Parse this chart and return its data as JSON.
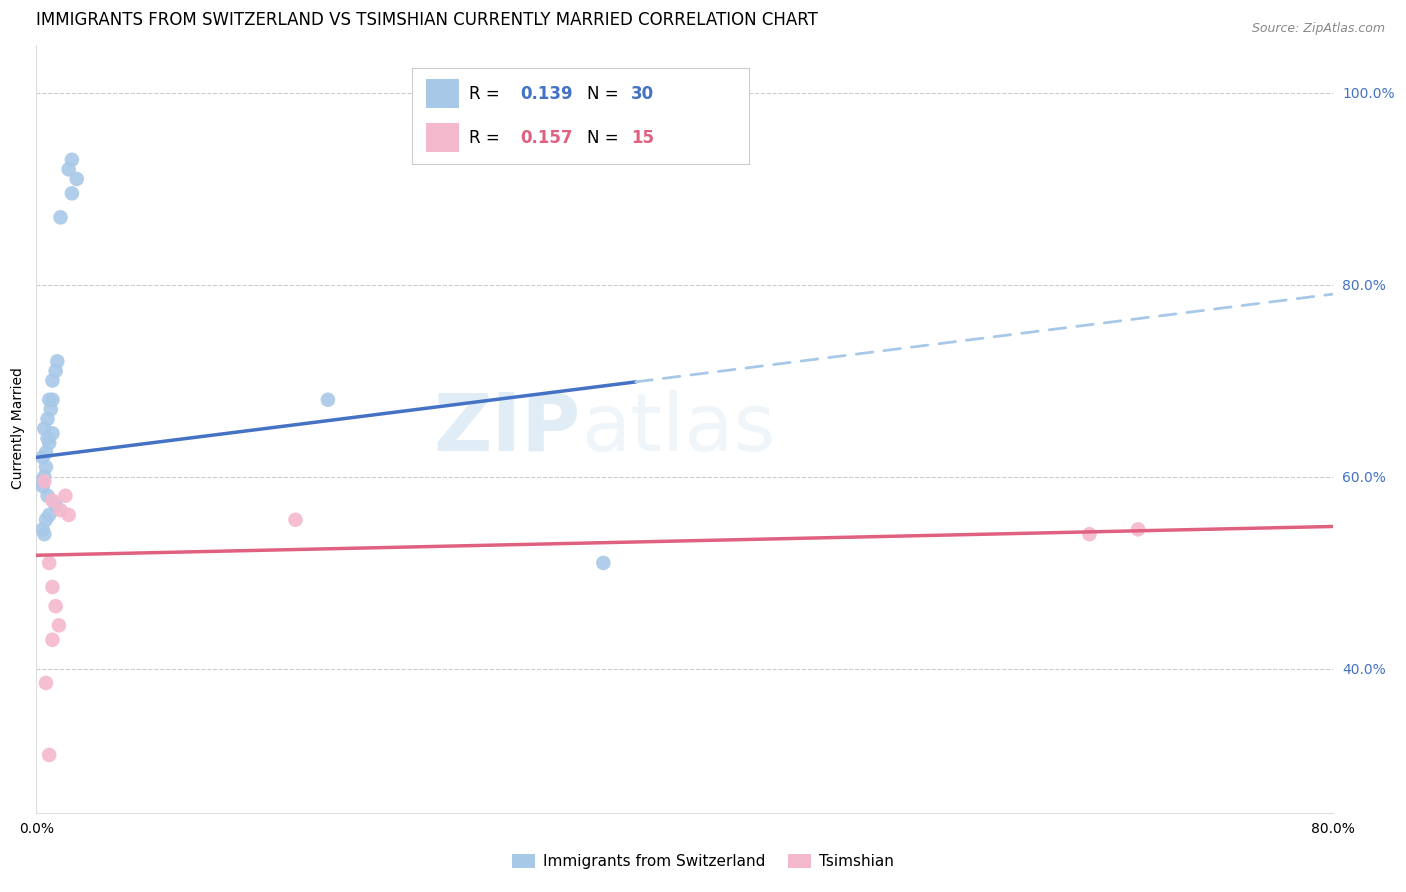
{
  "title": "IMMIGRANTS FROM SWITZERLAND VS TSIMSHIAN CURRENTLY MARRIED CORRELATION CHART",
  "source": "Source: ZipAtlas.com",
  "ylabel": "Currently Married",
  "watermark_line1": "ZIP",
  "watermark_line2": "atlas",
  "xlim": [
    0.0,
    0.8
  ],
  "ylim": [
    0.25,
    1.05
  ],
  "yticks_right": [
    0.4,
    0.6,
    0.8,
    1.0
  ],
  "ytick_labels_right": [
    "40.0%",
    "60.0%",
    "80.0%",
    "100.0%"
  ],
  "xtick_positions": [
    0.0,
    0.1,
    0.2,
    0.3,
    0.4,
    0.5,
    0.6,
    0.7,
    0.8
  ],
  "xtick_labels": [
    "0.0%",
    "",
    "",
    "",
    "",
    "",
    "",
    "",
    "80.0%"
  ],
  "grid_color": "#cccccc",
  "background_color": "#ffffff",
  "swiss_x": [
    0.02,
    0.022,
    0.025,
    0.022,
    0.015,
    0.013,
    0.01,
    0.008,
    0.007,
    0.009,
    0.01,
    0.012,
    0.005,
    0.007,
    0.006,
    0.008,
    0.01,
    0.004,
    0.006,
    0.005,
    0.003,
    0.004,
    0.18,
    0.007,
    0.35,
    0.012,
    0.008,
    0.006,
    0.004,
    0.005
  ],
  "swiss_y": [
    0.92,
    0.93,
    0.91,
    0.895,
    0.87,
    0.72,
    0.7,
    0.68,
    0.66,
    0.67,
    0.68,
    0.71,
    0.65,
    0.64,
    0.625,
    0.635,
    0.645,
    0.62,
    0.61,
    0.6,
    0.595,
    0.59,
    0.68,
    0.58,
    0.51,
    0.57,
    0.56,
    0.555,
    0.545,
    0.54
  ],
  "tsimshian_x": [
    0.005,
    0.01,
    0.015,
    0.018,
    0.02,
    0.008,
    0.01,
    0.012,
    0.014,
    0.01,
    0.006,
    0.008,
    0.65,
    0.68,
    0.16
  ],
  "tsimshian_y": [
    0.595,
    0.575,
    0.565,
    0.58,
    0.56,
    0.51,
    0.485,
    0.465,
    0.445,
    0.43,
    0.385,
    0.31,
    0.54,
    0.545,
    0.555
  ],
  "swiss_color": "#a8c8e8",
  "swiss_line_color": "#4472c4",
  "tsimshian_color": "#f4b8cc",
  "tsimshian_line_color": "#e06080",
  "swiss_R": "0.139",
  "swiss_N": "30",
  "tsimshian_R": "0.157",
  "tsimshian_N": "15",
  "legend_labels": [
    "Immigrants from Switzerland",
    "Tsimshian"
  ],
  "marker_size": 110,
  "title_fontsize": 12,
  "axis_label_fontsize": 10,
  "tick_fontsize": 10,
  "legend_fontsize": 12
}
